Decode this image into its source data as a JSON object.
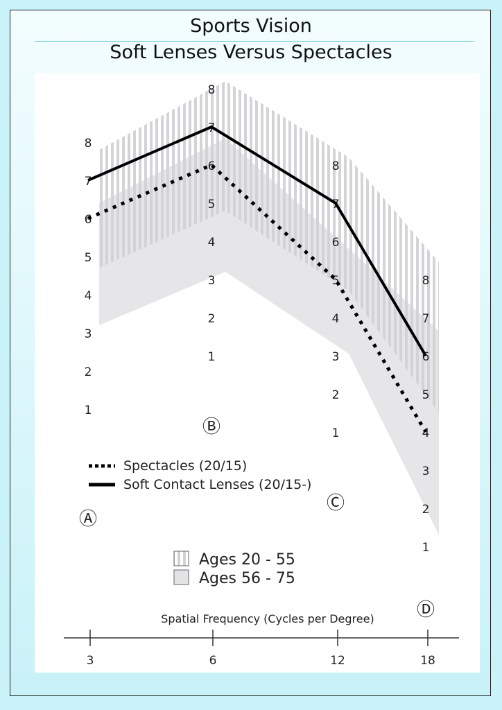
{
  "title": "Sports Vision",
  "subtitle": "Soft Lenses Versus Spectacles",
  "chart_data": {
    "type": "line",
    "title": "Sports Vision",
    "subtitle": "Soft Lenses Versus Spectacles",
    "xlabel": "Spatial Frequency (Cycles per Degree)",
    "x": [
      3,
      6,
      12,
      18
    ],
    "x_tick_labels": [
      "3",
      "6",
      "12",
      "18"
    ],
    "scale_markers": [
      "Ⓐ",
      "Ⓑ",
      "Ⓒ",
      "Ⓓ"
    ],
    "scale_tick_labels": [
      "1",
      "2",
      "3",
      "4",
      "5",
      "6",
      "7",
      "8"
    ],
    "ylim": [
      1,
      8
    ],
    "series": [
      {
        "name": "Spectacles (20/15)",
        "style": "dotted",
        "values": [
          6,
          6,
          5,
          4
        ]
      },
      {
        "name": "Soft Contact Lenses (20/15-)",
        "style": "solid",
        "values": [
          7,
          7,
          7,
          6
        ]
      }
    ],
    "bands": [
      {
        "name": "Ages 20 - 55",
        "fill": "hatched",
        "upper": [
          7.8,
          8.2,
          8.2,
          8.45
        ],
        "lower": [
          4.7,
          4.8,
          4.7,
          4.5
        ]
      },
      {
        "name": "Ages 56 - 75",
        "fill": "solid-gray",
        "upper": [
          6.4,
          6.7,
          5.8,
          6.65
        ],
        "lower": [
          3.2,
          3.2,
          3.05,
          1.3
        ]
      }
    ],
    "grid": false,
    "legend_position": "center-left",
    "colors": {
      "line": "#000000",
      "band": "#e6e6e8",
      "hatch": "#cfcfd3",
      "background": "#c9f3f8"
    }
  }
}
